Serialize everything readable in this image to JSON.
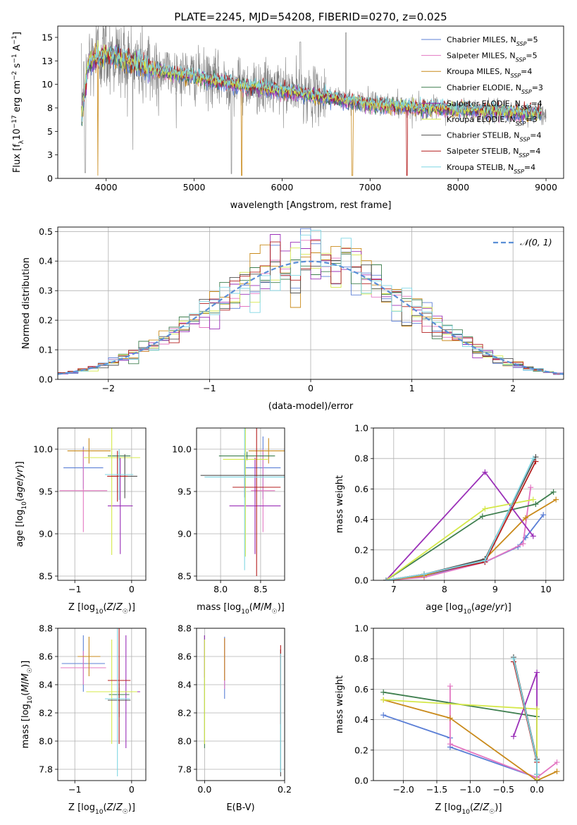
{
  "title": "PLATE=2245, MJD=54208, FIBERID=0270, z=0.025",
  "models": [
    {
      "name": "Chabrier MILES",
      "nssp": "5",
      "color": "#5b7fd6"
    },
    {
      "name": "Salpeter MILES",
      "nssp": "5",
      "color": "#e377c2"
    },
    {
      "name": "Kroupa MILES",
      "nssp": "4",
      "color": "#c98a1b"
    },
    {
      "name": "Chabrier ELODIE",
      "nssp": "3",
      "color": "#3f7f4f"
    },
    {
      "name": "Salpeter ELODIE",
      "nssp": "4",
      "color": "#9b30b8"
    },
    {
      "name": "Kroupa ELODIE",
      "nssp": "3",
      "color": "#d5e84a"
    },
    {
      "name": "Chabrier STELIB",
      "nssp": "4",
      "color": "#505050"
    },
    {
      "name": "Salpeter STELIB",
      "nssp": "4",
      "color": "#b41e1e"
    },
    {
      "name": "Kroupa STELIB",
      "nssp": "4",
      "color": "#7fd6e3"
    }
  ],
  "chart_data": [
    {
      "id": "spectrum",
      "type": "line",
      "xlabel": "wavelength [Angstrom, rest frame]",
      "ylabel": "Flux [f_λ 10^-17 erg cm^-2 s^-1 A^-1]",
      "xlim": [
        3450,
        9200
      ],
      "ylim": [
        0,
        16.2
      ],
      "xticks": [
        4000,
        5000,
        6000,
        7000,
        8000,
        9000
      ],
      "yticks": [
        0.0,
        2.5,
        5.0,
        7.5,
        10.0,
        12.5,
        15.0
      ],
      "grid": false,
      "legend": "top-right",
      "data_continuum": {
        "x": [
          3720,
          3800,
          3900,
          4000,
          4200,
          4500,
          4800,
          5000,
          5500,
          6000,
          6500,
          7000,
          7500,
          8000,
          8500,
          9000
        ],
        "y": [
          8.0,
          12.5,
          13.3,
          13.5,
          12.6,
          11.8,
          11.2,
          10.9,
          10.0,
          9.4,
          8.7,
          8.0,
          7.6,
          7.3,
          7.1,
          6.9
        ]
      },
      "model_continuum": {
        "x": [
          3720,
          3800,
          3900,
          4000,
          4100,
          4300,
          4500,
          4800,
          5000,
          5500,
          6000,
          6500,
          7000,
          7500,
          8000,
          8500,
          8950
        ],
        "y": [
          6.5,
          12.2,
          12.8,
          13.2,
          13.0,
          12.3,
          11.6,
          11.1,
          10.8,
          9.9,
          9.3,
          8.6,
          7.9,
          7.5,
          7.3,
          7.1,
          6.9
        ]
      }
    },
    {
      "id": "residuals",
      "type": "histogram",
      "xlabel": "(data-model)/error",
      "ylabel": "Normed distribution",
      "xlim": [
        -2.5,
        2.5
      ],
      "ylim": [
        0,
        0.515
      ],
      "xticks": [
        -2,
        -1,
        0,
        1,
        2
      ],
      "yticks": [
        0.0,
        0.1,
        0.2,
        0.3,
        0.4,
        0.5
      ],
      "grid": true,
      "legend": "top-right",
      "normal_label": "𝒩(0, 1)",
      "normal_color": "#5b8fd6",
      "bin_edges_start": -2.5,
      "bin_width": 0.1
    },
    {
      "id": "age_vs_Z",
      "type": "errorbar",
      "xlabel": "Z [log10(Z/Z☉)]",
      "ylabel": "age [log10(age/yr)]",
      "xlim": [
        -1.3,
        0.25
      ],
      "ylim": [
        8.45,
        10.25
      ],
      "xticks": [
        -1,
        0
      ],
      "yticks": [
        8.5,
        9.0,
        9.5,
        10.0
      ],
      "grid": true,
      "points": [
        {
          "model": 0,
          "x": -0.85,
          "xerr": 0.35,
          "y": 9.78,
          "yerr": 0.25
        },
        {
          "model": 1,
          "x": -0.85,
          "xerr": 0.42,
          "y": 9.51,
          "yerr": 0.49
        },
        {
          "model": 2,
          "x": -0.75,
          "xerr": 0.38,
          "y": 9.98,
          "yerr": 0.15
        },
        {
          "model": 3,
          "x": -0.22,
          "xerr": 0.2,
          "y": 9.92,
          "yerr": 0.05
        },
        {
          "model": 4,
          "x": -0.2,
          "xerr": 0.22,
          "y": 9.33,
          "yerr": 0.57
        },
        {
          "model": 5,
          "x": -0.35,
          "xerr": 0.5,
          "y": 9.9,
          "yerr": 1.15
        },
        {
          "model": 6,
          "x": -0.12,
          "xerr": 0.22,
          "y": 9.68,
          "yerr": 0.26
        },
        {
          "model": 7,
          "x": -0.25,
          "xerr": 0.18,
          "y": 9.68,
          "yerr": 0.3
        },
        {
          "model": 8,
          "x": -0.22,
          "xerr": 0.25,
          "y": 9.7,
          "yerr": 0.3
        }
      ]
    },
    {
      "id": "age_vs_mass",
      "type": "errorbar",
      "xlabel": "mass [log10(M/M☉)]",
      "ylabel": "",
      "xlim": [
        7.7,
        8.8
      ],
      "ylim": [
        8.45,
        10.25
      ],
      "xticks": [
        8.0,
        8.5
      ],
      "yticks": [
        8.5,
        9.0,
        9.5,
        10.0
      ],
      "grid": true,
      "points": [
        {
          "model": 0,
          "x": 8.53,
          "xerr": 0.22,
          "y": 9.78,
          "yerr": 0.37
        },
        {
          "model": 1,
          "x": 8.53,
          "xerr": 0.15,
          "y": 9.51,
          "yerr": 0.49
        },
        {
          "model": 2,
          "x": 8.6,
          "xerr": 0.25,
          "y": 9.98,
          "yerr": 0.15
        },
        {
          "model": 3,
          "x": 8.33,
          "xerr": 0.35,
          "y": 9.92,
          "yerr": 0.05
        },
        {
          "model": 4,
          "x": 8.43,
          "xerr": 0.32,
          "y": 9.33,
          "yerr": 0.57
        },
        {
          "model": 5,
          "x": 8.31,
          "xerr": 0.28,
          "y": 9.88,
          "yerr": 1.15
        },
        {
          "model": 6,
          "x": 8.3,
          "xerr": 0.55,
          "y": 9.69,
          "yerr": 0.26
        },
        {
          "model": 7,
          "x": 8.45,
          "xerr": 0.3,
          "y": 9.55,
          "yerr": 1.05
        },
        {
          "model": 8,
          "x": 8.3,
          "xerr": 0.5,
          "y": 9.67,
          "yerr": 1.1
        }
      ]
    },
    {
      "id": "mass_weight_vs_age",
      "type": "line",
      "xlabel": "age  [log10(age/yr)]",
      "ylabel": "mass weight",
      "xlim": [
        6.6,
        10.35
      ],
      "ylim": [
        0,
        1.0
      ],
      "xticks": [
        7,
        8,
        9,
        10
      ],
      "yticks": [
        0.0,
        0.2,
        0.4,
        0.6,
        0.8,
        1.0
      ],
      "grid": true,
      "series": [
        {
          "model": 0,
          "x": [
            6.85,
            7.6,
            8.8,
            9.45,
            9.6,
            9.95
          ],
          "y": [
            0.0,
            0.03,
            0.12,
            0.22,
            0.28,
            0.43
          ]
        },
        {
          "model": 1,
          "x": [
            6.85,
            7.6,
            8.8,
            9.55,
            9.7
          ],
          "y": [
            0.0,
            0.02,
            0.12,
            0.24,
            0.61
          ]
        },
        {
          "model": 2,
          "x": [
            6.85,
            7.6,
            8.8,
            9.6,
            10.2
          ],
          "y": [
            0.0,
            0.03,
            0.14,
            0.41,
            0.53
          ]
        },
        {
          "model": 3,
          "x": [
            6.85,
            8.75,
            9.8,
            10.15
          ],
          "y": [
            0.0,
            0.42,
            0.5,
            0.58
          ]
        },
        {
          "model": 4,
          "x": [
            6.85,
            8.8,
            9.75
          ],
          "y": [
            0.0,
            0.71,
            0.29
          ]
        },
        {
          "model": 5,
          "x": [
            6.85,
            8.8,
            9.75
          ],
          "y": [
            0.0,
            0.47,
            0.53
          ]
        },
        {
          "model": 6,
          "x": [
            6.85,
            7.6,
            8.8,
            9.8
          ],
          "y": [
            0.0,
            0.04,
            0.14,
            0.81
          ]
        },
        {
          "model": 7,
          "x": [
            6.85,
            7.6,
            8.8,
            9.8
          ],
          "y": [
            0.0,
            0.04,
            0.12,
            0.78
          ]
        },
        {
          "model": 8,
          "x": [
            6.85,
            7.6,
            8.8,
            9.75
          ],
          "y": [
            0.0,
            0.04,
            0.13,
            0.8
          ]
        }
      ]
    },
    {
      "id": "mass_vs_Z",
      "type": "errorbar",
      "xlabel": "Z [log10(Z/Z☉)]",
      "ylabel": "mass [log10(M/M☉)]",
      "xlim": [
        -1.3,
        0.25
      ],
      "ylim": [
        7.72,
        8.8
      ],
      "xticks": [
        -1,
        0
      ],
      "yticks": [
        7.8,
        8.0,
        8.2,
        8.4,
        8.6,
        8.8
      ],
      "grid": true,
      "points": [
        {
          "model": 0,
          "x": -0.85,
          "xerr": 0.38,
          "y": 8.55,
          "yerr": 0.2
        },
        {
          "model": 1,
          "x": -0.85,
          "xerr": 0.4,
          "y": 8.52,
          "yerr": 0.12
        },
        {
          "model": 2,
          "x": -0.75,
          "xerr": 0.2,
          "y": 8.6,
          "yerr": 0.14
        },
        {
          "model": 3,
          "x": -0.22,
          "xerr": 0.18,
          "y": 8.33,
          "yerr": 0.05
        },
        {
          "model": 4,
          "x": -0.1,
          "xerr": 0.25,
          "y": 8.35,
          "yerr": 0.4
        },
        {
          "model": 5,
          "x": -0.35,
          "xerr": 0.45,
          "y": 8.35,
          "yerr": 0.37
        },
        {
          "model": 6,
          "x": -0.22,
          "xerr": 0.2,
          "y": 8.29,
          "yerr": 0.12
        },
        {
          "model": 7,
          "x": -0.22,
          "xerr": 0.2,
          "y": 8.43,
          "yerr": 0.45
        },
        {
          "model": 8,
          "x": -0.25,
          "xerr": 0.22,
          "y": 8.3,
          "yerr": 0.55
        }
      ]
    },
    {
      "id": "mass_vs_ebv",
      "type": "errorbar",
      "xlabel": "E(B-V)",
      "ylabel": "",
      "xlim": [
        -0.02,
        0.2
      ],
      "ylim": [
        7.72,
        8.8
      ],
      "xticks": [
        0.0,
        0.2
      ],
      "yticks": [
        7.8,
        8.0,
        8.2,
        8.4,
        8.6,
        8.8
      ],
      "grid": true,
      "points": [
        {
          "model": 0,
          "x": 0.05,
          "y": 8.52,
          "yerr": 0.22
        },
        {
          "model": 1,
          "x": 0.05,
          "y": 8.55,
          "yerr": 0.18
        },
        {
          "model": 2,
          "x": 0.05,
          "y": 8.58,
          "yerr": 0.15
        },
        {
          "model": 3,
          "x": 0.0,
          "y": 8.35,
          "yerr": 0.4
        },
        {
          "model": 4,
          "x": 0.0,
          "y": 8.6,
          "yerr": 0.15
        },
        {
          "model": 5,
          "x": 0.0,
          "y": 8.35,
          "yerr": 0.37
        },
        {
          "model": 6,
          "x": 0.19,
          "y": 8.2,
          "yerr": 0.45
        },
        {
          "model": 7,
          "x": 0.19,
          "y": 8.4,
          "yerr": 0.28
        },
        {
          "model": 8,
          "x": 0.19,
          "y": 8.2,
          "yerr": 0.42
        }
      ]
    },
    {
      "id": "mass_weight_vs_Z",
      "type": "line",
      "xlabel": "Z [log10(Z/Z☉)]",
      "ylabel": "mass weight",
      "xlim": [
        -2.45,
        0.4
      ],
      "ylim": [
        0,
        1.0
      ],
      "xticks": [
        -2.0,
        -1.5,
        -1.0,
        -0.5,
        0.0
      ],
      "yticks": [
        0.0,
        0.2,
        0.4,
        0.6,
        0.8,
        1.0
      ],
      "grid": true,
      "series": [
        {
          "model": 0,
          "x": [
            -2.3,
            -1.3,
            -1.3,
            0.0,
            0.0
          ],
          "y": [
            0.43,
            0.28,
            0.22,
            0.02,
            0.04
          ]
        },
        {
          "model": 1,
          "x": [
            -1.3,
            -1.3,
            0.0,
            0.0,
            0.3
          ],
          "y": [
            0.62,
            0.24,
            0.02,
            0.02,
            0.12
          ]
        },
        {
          "model": 2,
          "x": [
            -2.3,
            -1.3,
            0.0,
            0.3
          ],
          "y": [
            0.53,
            0.41,
            0.0,
            0.06
          ]
        },
        {
          "model": 3,
          "x": [
            -2.3,
            0.0,
            0.0
          ],
          "y": [
            0.58,
            0.42,
            0.0
          ]
        },
        {
          "model": 4,
          "x": [
            -0.35,
            0.0,
            0.0
          ],
          "y": [
            0.29,
            0.71,
            0.0
          ]
        },
        {
          "model": 5,
          "x": [
            -2.3,
            0.0,
            0.0
          ],
          "y": [
            0.53,
            0.47,
            0.0
          ]
        },
        {
          "model": 6,
          "x": [
            -0.35,
            0.0,
            0.0
          ],
          "y": [
            0.81,
            0.14,
            0.04
          ]
        },
        {
          "model": 7,
          "x": [
            -0.35,
            0.0,
            0.0
          ],
          "y": [
            0.78,
            0.12,
            0.04
          ]
        },
        {
          "model": 8,
          "x": [
            -0.35,
            0.0,
            0.0
          ],
          "y": [
            0.8,
            0.13,
            0.04
          ]
        }
      ]
    }
  ]
}
